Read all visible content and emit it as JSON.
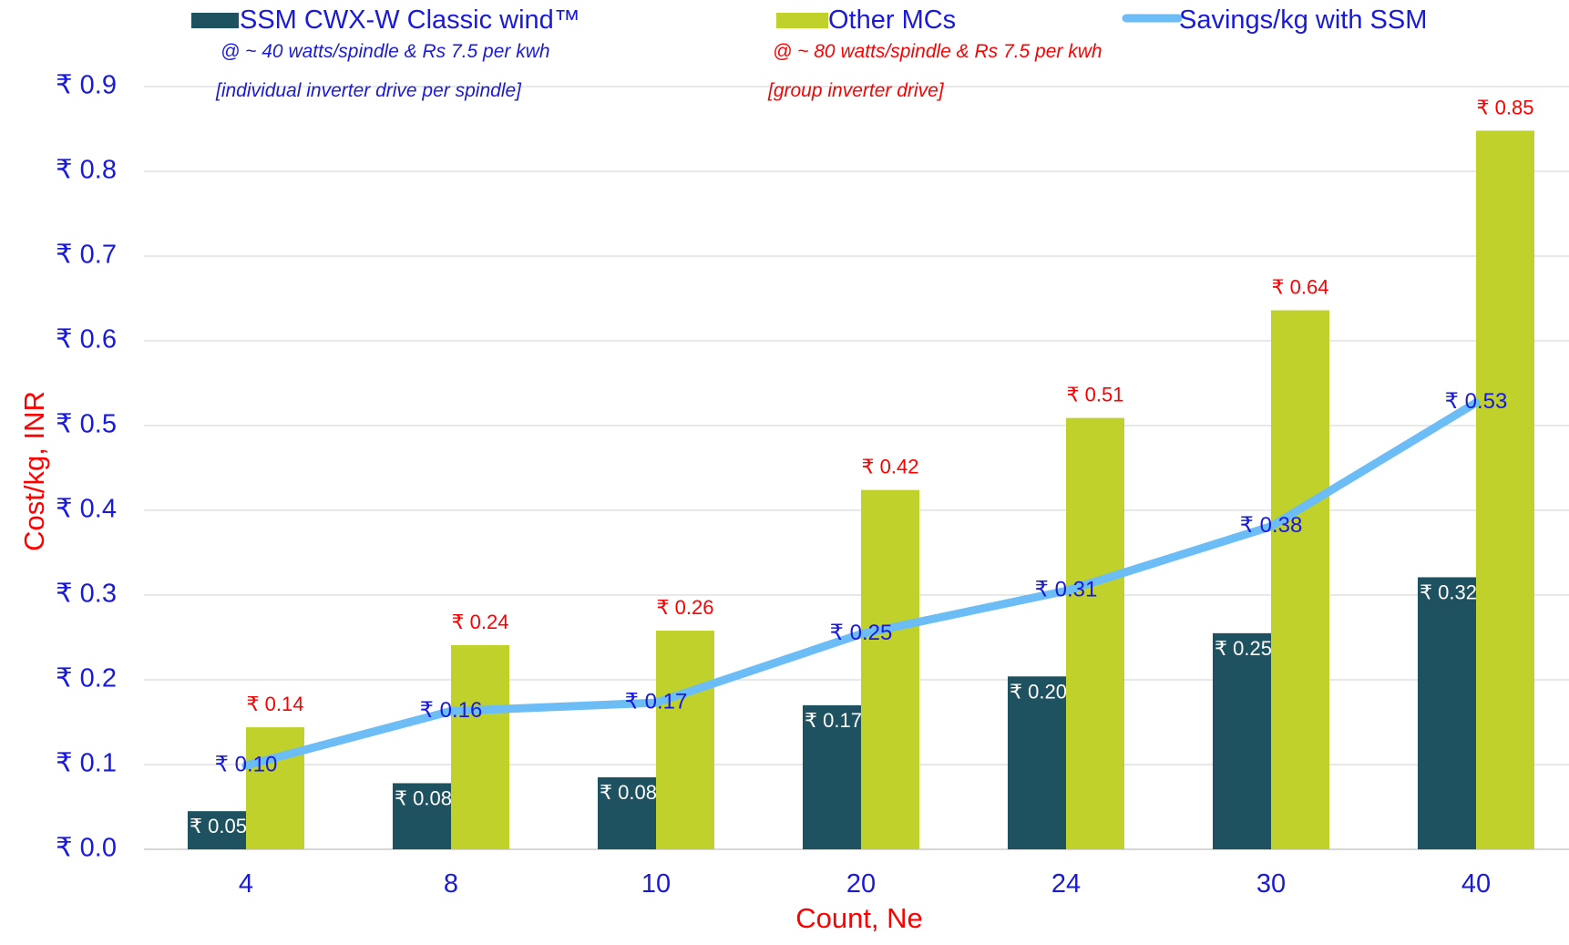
{
  "chart_data": {
    "type": "bar",
    "xlabel": "Count, Ne",
    "ylabel": "Cost/kg, INR",
    "ylim": [
      0,
      0.9
    ],
    "yticks": [
      0.0,
      0.1,
      0.2,
      0.3,
      0.4,
      0.5,
      0.6,
      0.7,
      0.8,
      0.9
    ],
    "ytick_labels": [
      "₹ 0.0",
      "₹ 0.1",
      "₹ 0.2",
      "₹ 0.3",
      "₹ 0.4",
      "₹ 0.5",
      "₹ 0.6",
      "₹ 0.7",
      "₹ 0.8",
      "₹ 0.9"
    ],
    "grid": true,
    "legend_position": "top",
    "categories": [
      "4",
      "8",
      "10",
      "20",
      "24",
      "30",
      "40"
    ],
    "series": [
      {
        "name": "SSM CWX-W Classic wind™",
        "kind": "bar",
        "color": "#1f5260",
        "label_color": "#ffffff",
        "values": [
          0.045,
          0.078,
          0.085,
          0.17,
          0.204,
          0.255,
          0.321
        ],
        "labels": [
          "₹ 0.05",
          "₹ 0.08",
          "₹ 0.08",
          "₹ 0.17",
          "₹ 0.20",
          "₹ 0.25",
          "₹ 0.32"
        ],
        "note_line1": "@ ~ 40 watts/spindle &  Rs 7.5 per kwh",
        "note_line2": "[individual inverter drive per spindle]",
        "note_color": "#1a1adc"
      },
      {
        "name": "Other MCs",
        "kind": "bar",
        "color": "#bfd12a",
        "label_color": "#ff0000",
        "values": [
          0.144,
          0.241,
          0.258,
          0.424,
          0.509,
          0.636,
          0.848
        ],
        "labels": [
          "₹ 0.14",
          "₹ 0.24",
          "₹ 0.26",
          "₹ 0.42",
          "₹ 0.51",
          "₹ 0.64",
          "₹ 0.85"
        ],
        "note_line1": "@ ~ 80 watts/spindle &  Rs 7.5 per kwh",
        "note_line2": "[group inverter drive]",
        "note_color": "#ff0000"
      },
      {
        "name": "Savings/kg with SSM",
        "kind": "line",
        "color": "#6cbcf5",
        "label_color": "#1a1adc",
        "values": [
          0.099,
          0.163,
          0.173,
          0.254,
          0.305,
          0.381,
          0.527
        ],
        "labels": [
          "₹ 0.10",
          "₹ 0.16",
          "₹ 0.17",
          "₹ 0.25",
          "₹ 0.31",
          "₹ 0.38",
          "₹ 0.53"
        ]
      }
    ],
    "colors": {
      "axis_text": "#1a1adc",
      "axis_title": "#ff0000",
      "grid": "#d9d9d9"
    }
  }
}
